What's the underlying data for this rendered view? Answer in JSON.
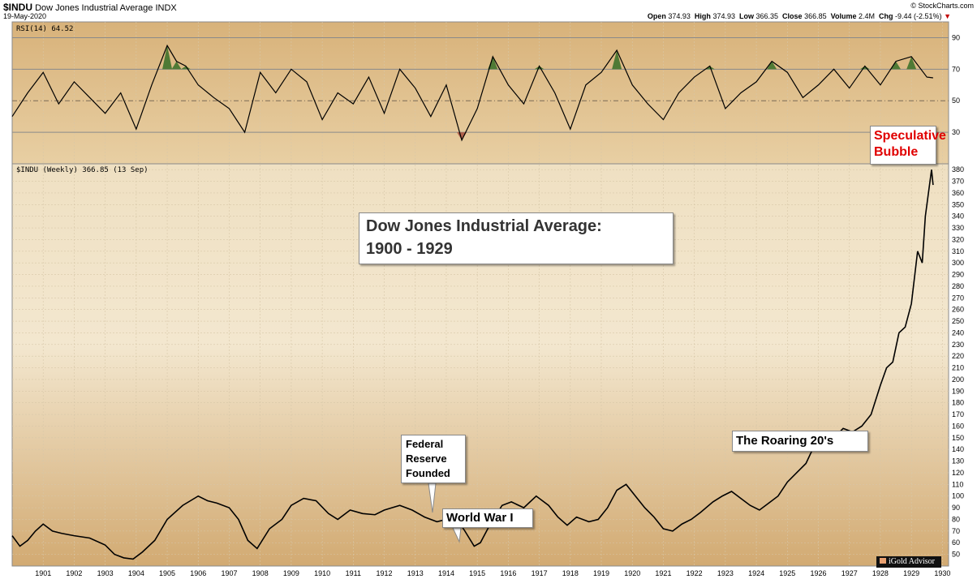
{
  "header": {
    "symbol": "$INDU",
    "name": "Dow Jones Industrial Average",
    "exchange": "INDX",
    "date": "19-May-2020",
    "source": "© StockCharts.com",
    "open_label": "Open",
    "open": "374.93",
    "high_label": "High",
    "high": "374.93",
    "low_label": "Low",
    "low": "366.35",
    "close_label": "Close",
    "close": "366.85",
    "volume_label": "Volume",
    "volume": "2.4M",
    "chg_label": "Chg",
    "chg": "-9.44 (-2.51%)",
    "chg_arrow": "▼"
  },
  "rsi_panel": {
    "legend": "RSI(14) 64.52",
    "ticks": [
      "90",
      "70",
      "50",
      "30"
    ]
  },
  "price_panel": {
    "legend": "$INDU (Weekly) 366.85 (13 Sep)"
  },
  "annotations": {
    "title_line1": "Dow Jones Industrial Average:",
    "title_line2": "1900 - 1929",
    "fed_line1": "Federal",
    "fed_line2": "Reserve",
    "fed_line3": "Founded",
    "ww1": "World War I",
    "roaring": "The Roaring 20's",
    "bubble_line1": "Speculative",
    "bubble_line2": "Bubble"
  },
  "logo": {
    "text": "iGold Advisor"
  },
  "colors": {
    "panel_bg_top": "#d9b57e",
    "panel_bg_mid": "#efe0c2",
    "rsi_over": "#4f7a35",
    "rsi_under": "#b0604a",
    "line": "#000000"
  },
  "chart_data": [
    {
      "type": "line",
      "title": "RSI(14) 64.52",
      "series": [
        {
          "name": "RSI(14)",
          "x": [
            1900.0,
            1900.5,
            1901.0,
            1901.5,
            1902.0,
            1902.5,
            1903.0,
            1903.5,
            1904.0,
            1904.5,
            1905.0,
            1905.3,
            1905.6,
            1906.0,
            1906.5,
            1907.0,
            1907.5,
            1908.0,
            1908.5,
            1909.0,
            1909.5,
            1910.0,
            1910.5,
            1911.0,
            1911.5,
            1912.0,
            1912.5,
            1913.0,
            1913.5,
            1914.0,
            1914.5,
            1915.0,
            1915.5,
            1916.0,
            1916.5,
            1917.0,
            1917.5,
            1918.0,
            1918.5,
            1919.0,
            1919.5,
            1920.0,
            1920.5,
            1921.0,
            1921.5,
            1922.0,
            1922.5,
            1923.0,
            1923.5,
            1924.0,
            1924.5,
            1925.0,
            1925.5,
            1926.0,
            1926.5,
            1927.0,
            1927.5,
            1928.0,
            1928.5,
            1929.0,
            1929.5,
            1929.7
          ],
          "values": [
            40,
            55,
            68,
            48,
            62,
            52,
            42,
            55,
            32,
            60,
            85,
            75,
            72,
            60,
            52,
            45,
            30,
            68,
            55,
            70,
            62,
            38,
            55,
            48,
            65,
            42,
            70,
            58,
            40,
            60,
            25,
            45,
            78,
            60,
            48,
            72,
            55,
            32,
            60,
            68,
            82,
            60,
            48,
            38,
            55,
            65,
            72,
            45,
            55,
            62,
            75,
            68,
            52,
            60,
            70,
            58,
            72,
            60,
            75,
            78,
            65,
            64.52
          ]
        }
      ],
      "ylim": [
        10,
        100
      ],
      "yticks": [
        90,
        70,
        50,
        30
      ]
    },
    {
      "type": "line",
      "title": "$INDU (Weekly) 366.85 (13 Sep)",
      "series": [
        {
          "name": "$INDU (Weekly)",
          "x": [
            1900.0,
            1900.25,
            1900.5,
            1900.75,
            1901.0,
            1901.3,
            1901.6,
            1902.0,
            1902.5,
            1903.0,
            1903.3,
            1903.6,
            1903.9,
            1904.2,
            1904.6,
            1905.0,
            1905.5,
            1906.0,
            1906.3,
            1906.6,
            1907.0,
            1907.3,
            1907.6,
            1907.9,
            1908.3,
            1908.7,
            1909.0,
            1909.4,
            1909.8,
            1910.2,
            1910.5,
            1910.9,
            1911.3,
            1911.7,
            1912.0,
            1912.5,
            1912.9,
            1913.3,
            1913.7,
            1914.0,
            1914.4,
            1914.6,
            1914.9,
            1915.1,
            1915.4,
            1915.8,
            1916.1,
            1916.5,
            1916.9,
            1917.3,
            1917.6,
            1917.9,
            1918.2,
            1918.6,
            1918.9,
            1919.2,
            1919.5,
            1919.8,
            1920.1,
            1920.4,
            1920.7,
            1921.0,
            1921.3,
            1921.6,
            1921.9,
            1922.2,
            1922.6,
            1922.9,
            1923.2,
            1923.5,
            1923.8,
            1924.1,
            1924.4,
            1924.7,
            1925.0,
            1925.3,
            1925.6,
            1925.9,
            1926.2,
            1926.5,
            1926.8,
            1927.1,
            1927.4,
            1927.7,
            1928.0,
            1928.2,
            1928.4,
            1928.6,
            1928.8,
            1929.0,
            1929.2,
            1929.35,
            1929.45,
            1929.55,
            1929.65,
            1929.7
          ],
          "values": [
            66,
            57,
            62,
            70,
            76,
            70,
            68,
            66,
            64,
            58,
            50,
            47,
            46,
            52,
            62,
            80,
            92,
            100,
            96,
            94,
            90,
            80,
            62,
            55,
            72,
            80,
            92,
            98,
            96,
            85,
            80,
            88,
            85,
            84,
            88,
            92,
            88,
            82,
            78,
            80,
            78,
            70,
            57,
            60,
            75,
            92,
            95,
            90,
            100,
            92,
            82,
            75,
            82,
            78,
            80,
            90,
            105,
            110,
            100,
            90,
            82,
            72,
            70,
            76,
            80,
            86,
            95,
            100,
            104,
            98,
            92,
            88,
            94,
            100,
            112,
            120,
            128,
            145,
            155,
            150,
            158,
            155,
            160,
            170,
            195,
            210,
            215,
            240,
            245,
            265,
            310,
            300,
            340,
            360,
            380,
            366.85
          ]
        }
      ],
      "ylim": [
        40,
        385
      ],
      "yticks": [
        50,
        60,
        70,
        80,
        90,
        100,
        110,
        120,
        130,
        140,
        150,
        160,
        170,
        180,
        190,
        200,
        210,
        220,
        230,
        240,
        250,
        260,
        270,
        280,
        290,
        300,
        310,
        320,
        330,
        340,
        350,
        360,
        370,
        380
      ],
      "xticks": [
        "1901",
        "1902",
        "1903",
        "1904",
        "1905",
        "1906",
        "1907",
        "1908",
        "1909",
        "1910",
        "1911",
        "1912",
        "1913",
        "1914",
        "1915",
        "1916",
        "1917",
        "1918",
        "1919",
        "1920",
        "1921",
        "1922",
        "1923",
        "1924",
        "1925",
        "1926",
        "1927",
        "1928",
        "1929",
        "1930"
      ]
    }
  ]
}
